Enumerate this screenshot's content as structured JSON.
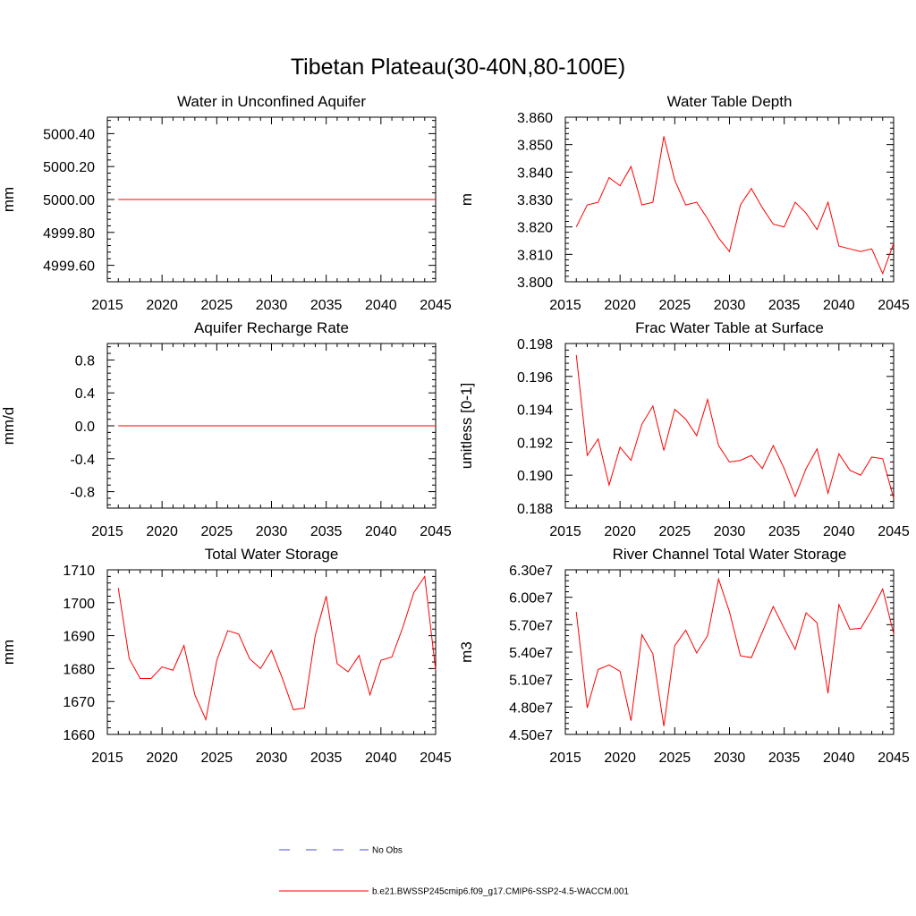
{
  "figure": {
    "title": "Tibetan Plateau(30-40N,80-100E)"
  },
  "chart_data": [
    {
      "type": "line",
      "title": "Water in Unconfined Aquifer",
      "xlabel": "",
      "ylabel": "mm",
      "xlim": [
        2015,
        2045
      ],
      "ylim": [
        4999.5,
        5000.5
      ],
      "x_ticks": [
        2015,
        2020,
        2025,
        2030,
        2035,
        2040,
        2045
      ],
      "y_ticks": [
        4999.6,
        4999.8,
        5000.0,
        5000.2,
        5000.4
      ],
      "y_tick_labels": [
        "4999.60",
        "4999.80",
        "5000.00",
        "5000.20",
        "5000.40"
      ],
      "series": [
        {
          "name": "b.e21.BWSSP245cmip6.f09_g17.CMIP6-SSP2-4.5-WACCM.001",
          "color": "#ff0000",
          "x": [
            2016,
            2045
          ],
          "y": [
            5000.0,
            5000.0
          ]
        }
      ]
    },
    {
      "type": "line",
      "title": "Water Table Depth",
      "xlabel": "",
      "ylabel": "m",
      "xlim": [
        2015,
        2045
      ],
      "ylim": [
        3.8,
        3.86
      ],
      "x_ticks": [
        2015,
        2020,
        2025,
        2030,
        2035,
        2040,
        2045
      ],
      "y_ticks": [
        3.8,
        3.81,
        3.82,
        3.83,
        3.84,
        3.85,
        3.86
      ],
      "y_tick_labels": [
        "3.800",
        "3.810",
        "3.820",
        "3.830",
        "3.840",
        "3.850",
        "3.860"
      ],
      "series": [
        {
          "name": "b.e21.BWSSP245cmip6.f09_g17.CMIP6-SSP2-4.5-WACCM.001",
          "color": "#ff0000",
          "x": [
            2016,
            2017,
            2018,
            2019,
            2020,
            2021,
            2022,
            2023,
            2024,
            2025,
            2026,
            2027,
            2028,
            2029,
            2030,
            2031,
            2032,
            2033,
            2034,
            2035,
            2036,
            2037,
            2038,
            2039,
            2040,
            2041,
            2042,
            2043,
            2044,
            2045
          ],
          "y": [
            3.82,
            3.828,
            3.829,
            3.838,
            3.835,
            3.842,
            3.828,
            3.829,
            3.853,
            3.837,
            3.828,
            3.829,
            3.823,
            3.816,
            3.811,
            3.828,
            3.834,
            3.827,
            3.821,
            3.82,
            3.829,
            3.825,
            3.819,
            3.829,
            3.813,
            3.812,
            3.811,
            3.812,
            3.803,
            3.814
          ]
        }
      ]
    },
    {
      "type": "line",
      "title": "Aquifer Recharge Rate",
      "xlabel": "",
      "ylabel": "mm/d",
      "xlim": [
        2015,
        2045
      ],
      "ylim": [
        -1.0,
        1.0
      ],
      "x_ticks": [
        2015,
        2020,
        2025,
        2030,
        2035,
        2040,
        2045
      ],
      "y_ticks": [
        -0.8,
        -0.4,
        0.0,
        0.4,
        0.8
      ],
      "y_tick_labels": [
        "-0.8",
        "-0.4",
        "0.0",
        "0.4",
        "0.8"
      ],
      "series": [
        {
          "name": "b.e21.BWSSP245cmip6.f09_g17.CMIP6-SSP2-4.5-WACCM.001",
          "color": "#ff0000",
          "x": [
            2016,
            2045
          ],
          "y": [
            0.0,
            0.0
          ]
        }
      ]
    },
    {
      "type": "line",
      "title": "Frac Water Table at Surface",
      "xlabel": "",
      "ylabel": "unitless [0-1]",
      "xlim": [
        2015,
        2045
      ],
      "ylim": [
        0.188,
        0.198
      ],
      "x_ticks": [
        2015,
        2020,
        2025,
        2030,
        2035,
        2040,
        2045
      ],
      "y_ticks": [
        0.188,
        0.19,
        0.192,
        0.194,
        0.196,
        0.198
      ],
      "y_tick_labels": [
        "0.188",
        "0.190",
        "0.192",
        "0.194",
        "0.196",
        "0.198"
      ],
      "series": [
        {
          "name": "b.e21.BWSSP245cmip6.f09_g17.CMIP6-SSP2-4.5-WACCM.001",
          "color": "#ff0000",
          "x": [
            2016,
            2017,
            2018,
            2019,
            2020,
            2021,
            2022,
            2023,
            2024,
            2025,
            2026,
            2027,
            2028,
            2029,
            2030,
            2031,
            2032,
            2033,
            2034,
            2035,
            2036,
            2037,
            2038,
            2039,
            2040,
            2041,
            2042,
            2043,
            2044,
            2045
          ],
          "y": [
            0.1973,
            0.1912,
            0.1922,
            0.1894,
            0.1917,
            0.1909,
            0.1931,
            0.1942,
            0.1915,
            0.194,
            0.1934,
            0.1924,
            0.1946,
            0.1918,
            0.1908,
            0.1909,
            0.1912,
            0.1904,
            0.1918,
            0.1904,
            0.1887,
            0.1904,
            0.1916,
            0.1889,
            0.1913,
            0.1903,
            0.19,
            0.1911,
            0.191,
            0.1886
          ]
        }
      ]
    },
    {
      "type": "line",
      "title": "Total Water Storage",
      "xlabel": "",
      "ylabel": "mm",
      "xlim": [
        2015,
        2045
      ],
      "ylim": [
        1660,
        1710
      ],
      "x_ticks": [
        2015,
        2020,
        2025,
        2030,
        2035,
        2040,
        2045
      ],
      "y_ticks": [
        1660,
        1670,
        1680,
        1690,
        1700,
        1710
      ],
      "y_tick_labels": [
        "1660",
        "1670",
        "1680",
        "1690",
        "1700",
        "1710"
      ],
      "series": [
        {
          "name": "b.e21.BWSSP245cmip6.f09_g17.CMIP6-SSP2-4.5-WACCM.001",
          "color": "#ff0000",
          "x": [
            2016,
            2017,
            2018,
            2019,
            2020,
            2021,
            2022,
            2023,
            2024,
            2025,
            2026,
            2027,
            2028,
            2029,
            2030,
            2031,
            2032,
            2033,
            2034,
            2035,
            2036,
            2037,
            2038,
            2039,
            2040,
            2041,
            2042,
            2043,
            2044,
            2045
          ],
          "y": [
            1704.5,
            1683.0,
            1677.0,
            1677.0,
            1680.5,
            1679.5,
            1687.0,
            1672.0,
            1664.5,
            1682.5,
            1691.5,
            1690.5,
            1683.0,
            1680.0,
            1685.5,
            1677.0,
            1667.5,
            1668.0,
            1690.0,
            1702.0,
            1681.5,
            1679.0,
            1684.0,
            1672.0,
            1682.5,
            1683.5,
            1692.5,
            1703.0,
            1708.0,
            1679.5
          ]
        }
      ]
    },
    {
      "type": "line",
      "title": "River Channel Total Water Storage",
      "xlabel": "",
      "ylabel": "m3",
      "xlim": [
        2015,
        2045
      ],
      "ylim": [
        45000000,
        63000000
      ],
      "x_ticks": [
        2015,
        2020,
        2025,
        2030,
        2035,
        2040,
        2045
      ],
      "y_ticks": [
        45000000,
        48000000,
        51000000,
        54000000,
        57000000,
        60000000,
        63000000
      ],
      "y_tick_labels": [
        "4.50e7",
        "4.80e7",
        "5.10e7",
        "5.40e7",
        "5.70e7",
        "6.00e7",
        "6.30e7"
      ],
      "series": [
        {
          "name": "b.e21.BWSSP245cmip6.f09_g17.CMIP6-SSP2-4.5-WACCM.001",
          "color": "#ff0000",
          "x": [
            2016,
            2017,
            2018,
            2019,
            2020,
            2021,
            2022,
            2023,
            2024,
            2025,
            2026,
            2027,
            2028,
            2029,
            2030,
            2031,
            2032,
            2033,
            2034,
            2035,
            2036,
            2037,
            2038,
            2039,
            2040,
            2041,
            2042,
            2043,
            2044,
            2045
          ],
          "y": [
            58400000,
            47900000,
            52100000,
            52600000,
            51900000,
            46500000,
            55900000,
            53800000,
            45900000,
            54700000,
            56400000,
            53900000,
            55800000,
            62000000,
            58400000,
            53600000,
            53400000,
            56200000,
            59000000,
            56600000,
            54300000,
            58300000,
            57200000,
            49500000,
            59200000,
            56500000,
            56600000,
            58600000,
            60900000,
            56000000
          ]
        }
      ]
    }
  ],
  "legend": {
    "items": [
      {
        "label": "No Obs",
        "color": "#4d4dcc",
        "style": "dashed"
      },
      {
        "label": "b.e21.BWSSP245cmip6.f09_g17.CMIP6-SSP2-4.5-WACCM.001",
        "color": "#ff0000",
        "style": "solid"
      }
    ]
  }
}
